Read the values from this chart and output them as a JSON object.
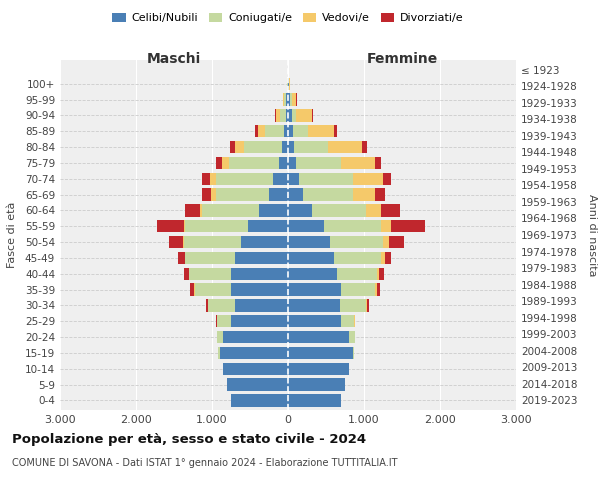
{
  "age_groups": [
    "0-4",
    "5-9",
    "10-14",
    "15-19",
    "20-24",
    "25-29",
    "30-34",
    "35-39",
    "40-44",
    "45-49",
    "50-54",
    "55-59",
    "60-64",
    "65-69",
    "70-74",
    "75-79",
    "80-84",
    "85-89",
    "90-94",
    "95-99",
    "100+"
  ],
  "birth_years": [
    "2019-2023",
    "2014-2018",
    "2009-2013",
    "2004-2008",
    "1999-2003",
    "1994-1998",
    "1989-1993",
    "1984-1988",
    "1979-1983",
    "1974-1978",
    "1969-1973",
    "1964-1968",
    "1959-1963",
    "1954-1958",
    "1949-1953",
    "1944-1948",
    "1939-1943",
    "1934-1938",
    "1929-1933",
    "1924-1928",
    "≤ 1923"
  ],
  "colors": {
    "celibi": "#4a7fb5",
    "coniugati": "#c5d9a0",
    "vedovi": "#f5c96a",
    "divorziati": "#c0272d"
  },
  "males": {
    "celibi": [
      750,
      800,
      850,
      900,
      850,
      750,
      700,
      750,
      750,
      700,
      620,
      520,
      380,
      250,
      200,
      120,
      80,
      50,
      30,
      20,
      5
    ],
    "coniugati": [
      0,
      0,
      5,
      20,
      80,
      180,
      350,
      480,
      550,
      650,
      750,
      830,
      750,
      700,
      750,
      650,
      500,
      250,
      80,
      30,
      5
    ],
    "vedovi": [
      0,
      0,
      0,
      0,
      2,
      2,
      3,
      5,
      8,
      10,
      15,
      20,
      30,
      60,
      80,
      100,
      120,
      100,
      50,
      10,
      2
    ],
    "divorziati": [
      0,
      0,
      0,
      0,
      5,
      10,
      30,
      60,
      60,
      90,
      180,
      350,
      200,
      120,
      100,
      80,
      60,
      30,
      10,
      5,
      0
    ]
  },
  "females": {
    "celibi": [
      700,
      750,
      800,
      850,
      800,
      700,
      680,
      700,
      650,
      600,
      550,
      480,
      320,
      200,
      150,
      100,
      80,
      60,
      50,
      30,
      10
    ],
    "coniugati": [
      0,
      0,
      5,
      20,
      80,
      170,
      350,
      450,
      520,
      620,
      700,
      750,
      700,
      650,
      700,
      600,
      450,
      200,
      60,
      20,
      5
    ],
    "vedovi": [
      0,
      0,
      0,
      0,
      3,
      5,
      8,
      15,
      30,
      50,
      80,
      120,
      200,
      300,
      400,
      450,
      450,
      350,
      200,
      60,
      10
    ],
    "divorziati": [
      0,
      0,
      0,
      0,
      5,
      10,
      25,
      50,
      60,
      90,
      200,
      450,
      250,
      120,
      100,
      80,
      60,
      30,
      15,
      5,
      0
    ]
  },
  "title": "Popolazione per età, sesso e stato civile - 2024",
  "subtitle": "COMUNE DI SAVONA - Dati ISTAT 1° gennaio 2024 - Elaborazione TUTTITALIA.IT",
  "xlabel_left": "Maschi",
  "xlabel_right": "Femmine",
  "ylabel_left": "Fasce di età",
  "ylabel_right": "Anni di nascita",
  "xlim": 3000,
  "background_color": "#ffffff",
  "legend_labels": [
    "Celibi/Nubili",
    "Coniugati/e",
    "Vedovi/e",
    "Divorziati/e"
  ]
}
